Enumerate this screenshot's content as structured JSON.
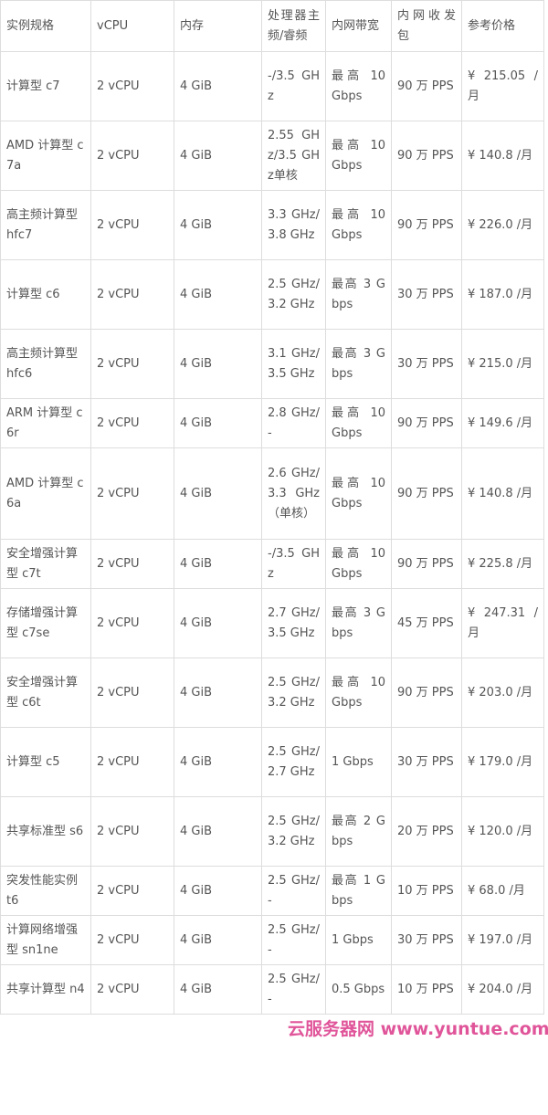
{
  "table": {
    "headers": [
      "实例规格",
      "vCPU",
      "内存",
      "处理器主频/睿频",
      "内网带宽",
      "内网收发包",
      "参考价格"
    ],
    "rows": [
      [
        "计算型 c7",
        "2 vCPU",
        "4 GiB",
        "-/3.5 GHz",
        "最高 10 Gbps",
        "90 万 PPS",
        "¥ 215.05 /月"
      ],
      [
        "AMD 计算型 c7a",
        "2 vCPU",
        "4 GiB",
        "2.55 GHz/3.5 GHz单核",
        "最高 10 Gbps",
        "90 万 PPS",
        "¥ 140.8 /月"
      ],
      [
        "高主频计算型 hfc7",
        "2 vCPU",
        "4 GiB",
        "3.3 GHz/3.8 GHz",
        "最高 10 Gbps",
        "90 万 PPS",
        "¥ 226.0 /月"
      ],
      [
        "计算型 c6",
        "2 vCPU",
        "4 GiB",
        "2.5 GHz/3.2 GHz",
        "最高 3 Gbps",
        "30 万 PPS",
        "¥ 187.0 /月"
      ],
      [
        "高主频计算型 hfc6",
        "2 vCPU",
        "4 GiB",
        "3.1 GHz/3.5 GHz",
        "最高 3 Gbps",
        "30 万 PPS",
        "¥ 215.0 /月"
      ],
      [
        "ARM 计算型 c6r",
        "2 vCPU",
        "4 GiB",
        "2.8 GHz/-",
        "最高 10 Gbps",
        "90 万 PPS",
        "¥ 149.6 /月"
      ],
      [
        "AMD 计算型 c6a",
        "2 vCPU",
        "4 GiB",
        "2.6 GHz/3.3 GHz（单核）",
        "最高 10 Gbps",
        "90 万 PPS",
        "¥ 140.8 /月"
      ],
      [
        "安全增强计算型 c7t",
        "2 vCPU",
        "4 GiB",
        "-/3.5 GHz",
        "最高 10 Gbps",
        "90 万 PPS",
        "¥ 225.8 /月"
      ],
      [
        "存储增强计算型 c7se",
        "2 vCPU",
        "4 GiB",
        "2.7 GHz/3.5 GHz",
        "最高 3 Gbps",
        "45 万 PPS",
        "¥ 247.31 /月"
      ],
      [
        "安全增强计算型 c6t",
        "2 vCPU",
        "4 GiB",
        "2.5 GHz/3.2 GHz",
        "最高 10 Gbps",
        "90 万 PPS",
        "¥ 203.0 /月"
      ],
      [
        "计算型 c5",
        "2 vCPU",
        "4 GiB",
        "2.5 GHz/2.7 GHz",
        "1 Gbps",
        "30 万 PPS",
        "¥ 179.0 /月"
      ],
      [
        "共享标准型 s6",
        "2 vCPU",
        "4 GiB",
        "2.5 GHz/3.2 GHz",
        "最高 2 Gbps",
        "20 万 PPS",
        "¥ 120.0 /月"
      ],
      [
        "突发性能实例 t6",
        "2 vCPU",
        "4 GiB",
        "2.5 GHz/-",
        "最高 1 Gbps",
        "10 万 PPS",
        "¥ 68.0 /月"
      ],
      [
        "计算网络增强型 sn1ne",
        "2 vCPU",
        "4 GiB",
        "2.5 GHz/-",
        "1 Gbps",
        "30 万 PPS",
        "¥ 197.0 /月"
      ],
      [
        "共享计算型 n4",
        "2 vCPU",
        "4 GiB",
        "2.5 GHz/-",
        "0.5 Gbps",
        "10 万 PPS",
        "¥ 204.0 /月"
      ]
    ]
  },
  "watermark": "云服务器网 www.yuntue.com"
}
